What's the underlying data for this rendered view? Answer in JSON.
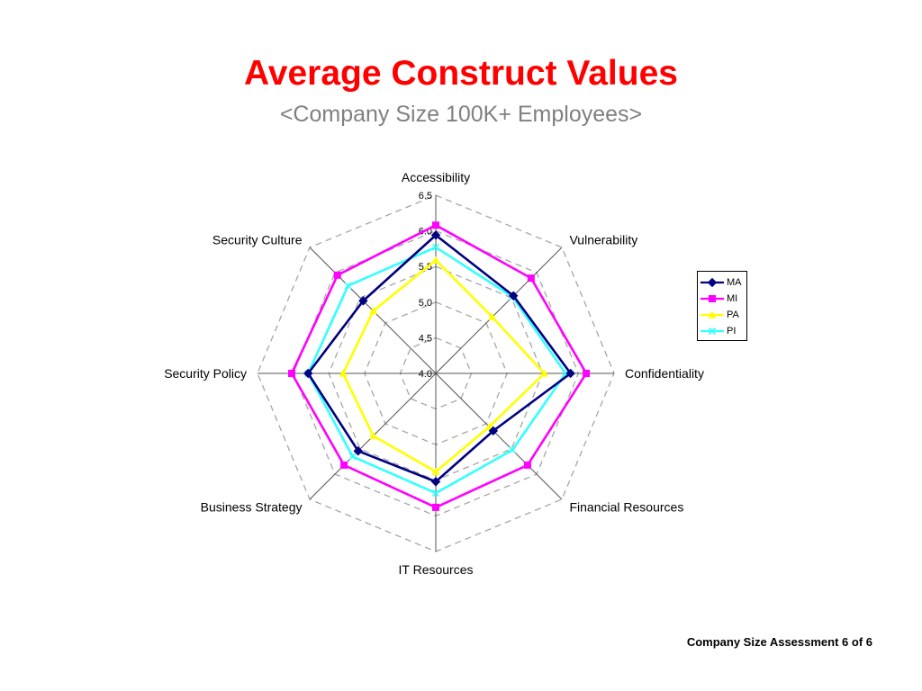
{
  "page": {
    "title": "Average Construct Values",
    "subtitle": "<Company Size 100K+ Employees>",
    "footer": "Company Size Assessment 6 of 6"
  },
  "chart_data": {
    "type": "radar",
    "categories": [
      "Accessibility",
      "Vulnerability",
      "Confidentiality",
      "Financial Resources",
      "IT Resources",
      "Business Strategy",
      "Security Policy",
      "Security Culture"
    ],
    "rlim": [
      4.0,
      6.5
    ],
    "ticks": [
      "4.0",
      "4.5",
      "5.0",
      "5.5",
      "6.0",
      "6.5"
    ],
    "grid": true,
    "legend_position": "right",
    "series": [
      {
        "name": "MA",
        "color": "#000080",
        "marker": "diamond",
        "values": [
          5.94,
          5.54,
          5.89,
          5.14,
          5.52,
          5.54,
          5.79,
          5.44
        ]
      },
      {
        "name": "MI",
        "color": "#ff00ff",
        "marker": "square",
        "values": [
          6.08,
          5.89,
          6.11,
          5.82,
          5.88,
          5.82,
          6.02,
          5.95
        ]
      },
      {
        "name": "PA",
        "color": "#ffff00",
        "marker": "triangle",
        "values": [
          5.59,
          5.12,
          5.52,
          5.06,
          5.38,
          5.24,
          5.3,
          5.24
        ]
      },
      {
        "name": "PI",
        "color": "#33ffff",
        "marker": "x",
        "values": [
          5.77,
          5.52,
          5.82,
          5.52,
          5.68,
          5.65,
          5.79,
          5.74
        ]
      }
    ]
  }
}
